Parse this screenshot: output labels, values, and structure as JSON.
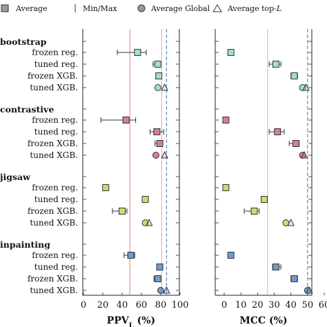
{
  "chart_data": [
    {
      "type": "scatter",
      "xlabel": "PPV",
      "xlabel_sub": "L",
      "xlabel_unit": " (%)",
      "xlim": [
        0,
        100
      ],
      "xticks": [
        0,
        20,
        40,
        60,
        80,
        100
      ],
      "reference_lines": [
        {
          "x": 48,
          "color": "#f08080",
          "style": "solid"
        },
        {
          "x": 81,
          "color": "#f4b183",
          "style": "solid"
        },
        {
          "x": 86,
          "color": "#4a7fc1",
          "style": "dashed"
        }
      ],
      "groups": [
        {
          "name": "bootstrap",
          "color": "#9fe0c8",
          "rows": [
            {
              "label": "frozen reg.",
              "average": 56,
              "min": 35,
              "max": 65
            },
            {
              "label": "tuned reg.",
              "average": 77,
              "min": 72,
              "max": 80
            },
            {
              "label": "frozen XGB.",
              "average": 78,
              "min": 75,
              "max": 80
            },
            {
              "label": "tuned XGB.",
              "global": 77,
              "topL": 84
            }
          ]
        },
        {
          "name": "contrastive",
          "color": "#d47f95",
          "rows": [
            {
              "label": "frozen reg.",
              "average": 44,
              "min": 18,
              "max": 54
            },
            {
              "label": "tuned reg.",
              "average": 76,
              "min": 69,
              "max": 83
            },
            {
              "label": "frozen XGB.",
              "average": 79,
              "min": 74,
              "max": 81
            },
            {
              "label": "tuned XGB.",
              "global": 75,
              "topL": 84
            }
          ]
        },
        {
          "name": "jigsaw",
          "color": "#c5dc74",
          "rows": [
            {
              "label": "frozen reg.",
              "average": 23
            },
            {
              "label": "tuned reg.",
              "average": 64,
              "min": 63,
              "max": 67
            },
            {
              "label": "frozen XGB.",
              "average": 40,
              "min": 30,
              "max": 45
            },
            {
              "label": "tuned XGB.",
              "global": 64,
              "topL": 68
            }
          ]
        },
        {
          "name": "inpainting",
          "color": "#6f9bcc",
          "rows": [
            {
              "label": "frozen reg.",
              "average": 49,
              "min": 42,
              "max": 53
            },
            {
              "label": "tuned reg.",
              "average": 79,
              "min": 76,
              "max": 82
            },
            {
              "label": "frozen XGB.",
              "average": 77,
              "min": 73,
              "max": 80
            },
            {
              "label": "tuned XGB.",
              "global": 80,
              "topL": 86
            }
          ]
        }
      ]
    },
    {
      "type": "scatter",
      "xlabel": "MCC",
      "xlabel_unit": " (%)",
      "xlim": [
        0,
        60
      ],
      "xticks": [
        0,
        10,
        20,
        30,
        40,
        50,
        60
      ],
      "reference_lines": [
        {
          "x": 26,
          "color": "#f4b183",
          "style": "solid"
        },
        {
          "x": 50,
          "color": "#4a7fc1",
          "style": "dashed"
        }
      ],
      "groups": [
        {
          "name": "bootstrap",
          "color": "#9fe0c8",
          "rows": [
            {
              "label": "frozen reg.",
              "average": 4
            },
            {
              "label": "tuned reg.",
              "average": 31,
              "min": 27,
              "max": 34
            },
            {
              "label": "frozen XGB.",
              "average": 42,
              "min": 40,
              "max": 44
            },
            {
              "label": "tuned XGB.",
              "global": 47,
              "topL": 49
            }
          ]
        },
        {
          "name": "contrastive",
          "color": "#d47f95",
          "rows": [
            {
              "label": "frozen reg.",
              "average": 1
            },
            {
              "label": "tuned reg.",
              "average": 32,
              "min": 27,
              "max": 36
            },
            {
              "label": "frozen XGB.",
              "average": 43,
              "min": 39,
              "max": 45
            },
            {
              "label": "tuned XGB.",
              "global": 47,
              "topL": 48
            }
          ]
        },
        {
          "name": "jigsaw",
          "color": "#c5dc74",
          "rows": [
            {
              "label": "frozen reg.",
              "average": 1
            },
            {
              "label": "tuned reg.",
              "average": 24
            },
            {
              "label": "frozen XGB.",
              "average": 18,
              "min": 12,
              "max": 21
            },
            {
              "label": "tuned XGB.",
              "global": 37,
              "topL": 40
            }
          ]
        },
        {
          "name": "inpainting",
          "color": "#6f9bcc",
          "rows": [
            {
              "label": "frozen reg.",
              "average": 4
            },
            {
              "label": "tuned reg.",
              "average": 31,
              "min": 29,
              "max": 34
            },
            {
              "label": "frozen XGB.",
              "average": 42,
              "min": 40,
              "max": 44
            },
            {
              "label": "tuned XGB.",
              "global": 50,
              "topL": 51
            }
          ]
        }
      ]
    }
  ],
  "legend": {
    "average": "Average",
    "minmax": "Min/Max",
    "global": "Average Global",
    "topl_prefix": "Average top-",
    "topl_var": "L"
  }
}
